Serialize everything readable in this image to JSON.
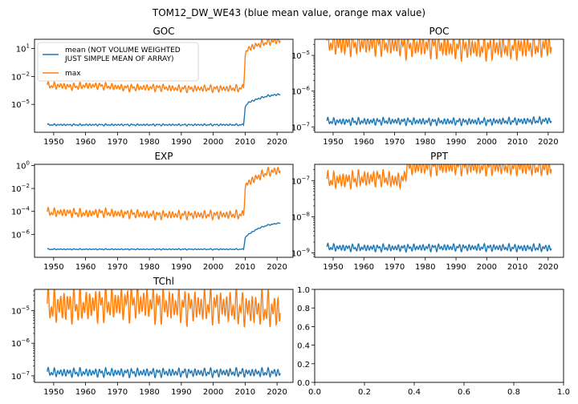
{
  "suptitle": "TOM12_DW_WE43 (blue mean value, orange max value)",
  "colors": {
    "mean": "#1f77b4",
    "max": "#ff7f0e"
  },
  "legend": {
    "mean_line1": "mean (NOT VOLUME WEIGHTED",
    "mean_line2": " JUST SIMPLE MEAN OF ARRAY)",
    "max": "max"
  },
  "chart_data": [
    {
      "type": "line",
      "title": "GOC",
      "yscale": "log",
      "xlim": [
        1944,
        2025
      ],
      "ylim_exp": [
        -8,
        2
      ],
      "x_ticks": [
        "1950",
        "1960",
        "1970",
        "1980",
        "1990",
        "2000",
        "2010",
        "2020"
      ],
      "y_ticks": [
        {
          "exp": 1,
          "label": "10"
        },
        {
          "exp": -2,
          "label": "10"
        },
        {
          "exp": -5,
          "label": "10"
        }
      ],
      "y_tick_sups": [
        "1",
        "−2",
        "−5"
      ],
      "legend_position": "upper-left",
      "series": [
        {
          "name": "mean",
          "x": [
            1948,
            1952,
            1956,
            1960,
            1964,
            1968,
            1972,
            1976,
            1980,
            1984,
            1988,
            1992,
            1996,
            2000,
            2004,
            2008,
            2009.5,
            2010,
            2011,
            2014,
            2017,
            2021
          ],
          "y_exp": [
            -7.2,
            -7.2,
            -7.2,
            -7.2,
            -7.2,
            -7.2,
            -7.2,
            -7.2,
            -7.2,
            -7.2,
            -7.2,
            -7.2,
            -7.2,
            -7.2,
            -7.2,
            -7.2,
            -7.2,
            -5.3,
            -4.8,
            -4.4,
            -4.1,
            -3.9
          ],
          "osc": 0.12
        },
        {
          "name": "max",
          "x": [
            1948,
            1952,
            1956,
            1960,
            1964,
            1968,
            1972,
            1976,
            1980,
            1984,
            1988,
            1992,
            1996,
            2000,
            2004,
            2008,
            2009.5,
            2010,
            2011,
            2014,
            2017,
            2021
          ],
          "y_exp": [
            -3.0,
            -3.0,
            -3.1,
            -3.0,
            -3.0,
            -3.1,
            -3.2,
            -3.2,
            -3.2,
            -3.2,
            -3.3,
            -3.3,
            -3.3,
            -3.3,
            -3.3,
            -3.3,
            -3.2,
            0.3,
            1.0,
            1.4,
            1.7,
            1.9
          ],
          "osc": 0.45
        }
      ]
    },
    {
      "type": "line",
      "title": "POC",
      "yscale": "log",
      "xlim": [
        1944,
        2025
      ],
      "ylim_exp": [
        -7.15,
        -4.55
      ],
      "x_ticks": [
        "1950",
        "1960",
        "1970",
        "1980",
        "1990",
        "2000",
        "2010",
        "2020"
      ],
      "y_ticks": [
        {
          "exp": -5,
          "label": "10"
        },
        {
          "exp": -6,
          "label": "10"
        },
        {
          "exp": -7,
          "label": "10"
        }
      ],
      "y_tick_sups": [
        "−5",
        "−6",
        "−7"
      ],
      "series": [
        {
          "name": "mean",
          "x": [
            1948,
            1960,
            1970,
            1980,
            1990,
            2000,
            2010,
            2021
          ],
          "y_exp": [
            -6.85,
            -6.85,
            -6.84,
            -6.85,
            -6.85,
            -6.85,
            -6.84,
            -6.82
          ],
          "osc": 0.12
        },
        {
          "name": "max",
          "x": [
            1948,
            1955,
            1960,
            1965,
            1970,
            1975,
            1980,
            1985,
            1990,
            1995,
            2000,
            2005,
            2010,
            2015,
            2021
          ],
          "y_exp": [
            -4.65,
            -4.7,
            -4.65,
            -4.68,
            -4.7,
            -4.75,
            -4.72,
            -4.75,
            -4.78,
            -4.78,
            -4.8,
            -4.78,
            -4.78,
            -4.75,
            -4.72
          ],
          "osc": 0.4
        }
      ]
    },
    {
      "type": "line",
      "title": "EXP",
      "yscale": "log",
      "xlim": [
        1944,
        2025
      ],
      "ylim_exp": [
        -8,
        0.1
      ],
      "x_ticks": [
        "1950",
        "1960",
        "1970",
        "1980",
        "1990",
        "2000",
        "2010",
        "2020"
      ],
      "y_ticks": [
        {
          "exp": 0,
          "label": "10"
        },
        {
          "exp": -2,
          "label": "10"
        },
        {
          "exp": -4,
          "label": "10"
        },
        {
          "exp": -6,
          "label": "10"
        }
      ],
      "y_tick_sups": [
        "0",
        "−2",
        "−4",
        "−6"
      ],
      "series": [
        {
          "name": "mean",
          "x": [
            1948,
            1955,
            1960,
            1970,
            1980,
            1990,
            2000,
            2009.5,
            2010,
            2011,
            2014,
            2017,
            2021
          ],
          "y_exp": [
            -7.3,
            -7.3,
            -7.3,
            -7.3,
            -7.3,
            -7.3,
            -7.3,
            -7.3,
            -6.3,
            -6.0,
            -5.5,
            -5.2,
            -5.0
          ],
          "osc": 0.06
        },
        {
          "name": "max",
          "x": [
            1948,
            1955,
            1960,
            1965,
            1970,
            1975,
            1980,
            1985,
            1990,
            1995,
            2000,
            2005,
            2009.5,
            2010,
            2011,
            2014,
            2017,
            2021
          ],
          "y_exp": [
            -4.1,
            -4.1,
            -4.2,
            -4.1,
            -4.2,
            -4.2,
            -4.3,
            -4.3,
            -4.3,
            -4.3,
            -4.3,
            -4.3,
            -4.3,
            -1.9,
            -1.5,
            -1.0,
            -0.6,
            -0.4
          ],
          "osc": 0.45
        }
      ]
    },
    {
      "type": "line",
      "title": "PPT",
      "yscale": "log",
      "xlim": [
        1944,
        2025
      ],
      "ylim_exp": [
        -9.12,
        -6.55
      ],
      "x_ticks": [
        "1950",
        "1960",
        "1970",
        "1980",
        "1990",
        "2000",
        "2010",
        "2020"
      ],
      "y_ticks": [
        {
          "exp": -7,
          "label": "10"
        },
        {
          "exp": -8,
          "label": "10"
        },
        {
          "exp": -9,
          "label": "10"
        }
      ],
      "y_tick_sups": [
        "−7",
        "−8",
        "−9"
      ],
      "series": [
        {
          "name": "mean",
          "x": [
            1948,
            1960,
            1970,
            1980,
            1990,
            2000,
            2010,
            2021
          ],
          "y_exp": [
            -8.85,
            -8.86,
            -8.86,
            -8.85,
            -8.85,
            -8.85,
            -8.86,
            -8.86
          ],
          "osc": 0.12
        },
        {
          "name": "max",
          "x": [
            1948,
            1955,
            1960,
            1965,
            1970,
            1973,
            1974,
            1980,
            1990,
            2000,
            2010,
            2021
          ],
          "y_exp": [
            -7.0,
            -6.98,
            -6.95,
            -6.92,
            -7.0,
            -6.98,
            -6.62,
            -6.62,
            -6.6,
            -6.62,
            -6.62,
            -6.65
          ],
          "osc": 0.28
        }
      ]
    },
    {
      "type": "line",
      "title": "TChl",
      "yscale": "log",
      "xlim": [
        1944,
        2025
      ],
      "ylim_exp": [
        -7.2,
        -4.35
      ],
      "x_ticks": [
        "1950",
        "1960",
        "1970",
        "1980",
        "1990",
        "2000",
        "2010",
        "2020"
      ],
      "y_ticks": [
        {
          "exp": -5,
          "label": "10"
        },
        {
          "exp": -6,
          "label": "10"
        },
        {
          "exp": -7,
          "label": "10"
        }
      ],
      "y_tick_sups": [
        "−5",
        "−6",
        "−7"
      ],
      "series": [
        {
          "name": "mean",
          "x": [
            1948,
            1960,
            1970,
            1980,
            1990,
            2000,
            2010,
            2021
          ],
          "y_exp": [
            -6.9,
            -6.9,
            -6.9,
            -6.9,
            -6.9,
            -6.9,
            -6.9,
            -6.9
          ],
          "osc": 0.16
        },
        {
          "name": "max",
          "x": [
            1948,
            1955,
            1960,
            1965,
            1970,
            1975,
            1980,
            1985,
            1990,
            1995,
            2000,
            2005,
            2010,
            2015,
            2021
          ],
          "y_exp": [
            -4.9,
            -4.85,
            -4.85,
            -4.8,
            -4.8,
            -4.75,
            -4.8,
            -4.85,
            -4.85,
            -4.88,
            -4.85,
            -4.9,
            -4.95,
            -4.95,
            -5.0
          ],
          "osc": 0.65
        }
      ]
    },
    {
      "type": "line",
      "title": "",
      "yscale": "linear",
      "xlim": [
        0,
        1
      ],
      "ylim": [
        0,
        1
      ],
      "x_ticks": [
        "0.0",
        "0.2",
        "0.4",
        "0.6",
        "0.8",
        "1.0"
      ],
      "y_ticks": [
        "0.0",
        "0.2",
        "0.4",
        "0.6",
        "0.8",
        "1.0"
      ],
      "series": []
    }
  ]
}
